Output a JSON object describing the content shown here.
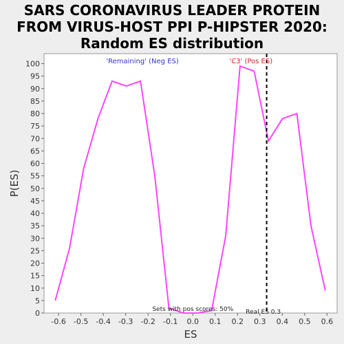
{
  "chart_data": {
    "type": "line",
    "title_lines": [
      "SARS CORONAVIRUS LEADER PROTEIN",
      "FROM VIRUS-HOST PPI P-HIPSTER 2020:",
      "Random ES distribution"
    ],
    "xlabel": "ES",
    "ylabel": "P(ES)",
    "xlim": [
      -0.665,
      0.645
    ],
    "ylim": [
      0,
      104
    ],
    "xticks": [
      -0.6,
      -0.5,
      -0.4,
      -0.3,
      -0.2,
      -0.1,
      0.0,
      0.1,
      0.2,
      0.3,
      0.4,
      0.5,
      0.6
    ],
    "xtick_labels": [
      "-0.6",
      "-0.5",
      "-0.4",
      "-0.3",
      "-0.2",
      "-0.1",
      "0.0",
      "0.1",
      "0.2",
      "0.3",
      "0.4",
      "0.5",
      "0.6"
    ],
    "yticks": [
      0,
      5,
      10,
      15,
      20,
      25,
      30,
      35,
      40,
      45,
      50,
      55,
      60,
      65,
      70,
      75,
      80,
      85,
      90,
      95,
      100
    ],
    "series": [
      {
        "color": "#ff44ff",
        "x": [
          -0.615,
          -0.551,
          -0.488,
          -0.424,
          -0.361,
          -0.297,
          -0.234,
          -0.17,
          -0.107,
          -0.043,
          0.02,
          0.084,
          0.147,
          0.211,
          0.274,
          0.338,
          0.401,
          0.465,
          0.528,
          0.592
        ],
        "y": [
          5,
          26,
          58,
          78,
          93,
          91,
          93,
          55,
          2,
          0,
          0,
          1,
          31,
          99,
          97,
          69,
          78,
          80,
          35,
          9
        ]
      }
    ],
    "real_es": 0.33,
    "real_es_label": "Real ES 0.3",
    "annotations": {
      "neg": "'Remaining' (Neg ES)",
      "pos": "'C3' (Pos ES)",
      "sets": "Sets with pos scores: 50%"
    },
    "colors": {
      "neg": "#3333cc",
      "pos": "#cc2222",
      "line": "#ff44ff",
      "plot_bg": "#ffffff"
    }
  }
}
